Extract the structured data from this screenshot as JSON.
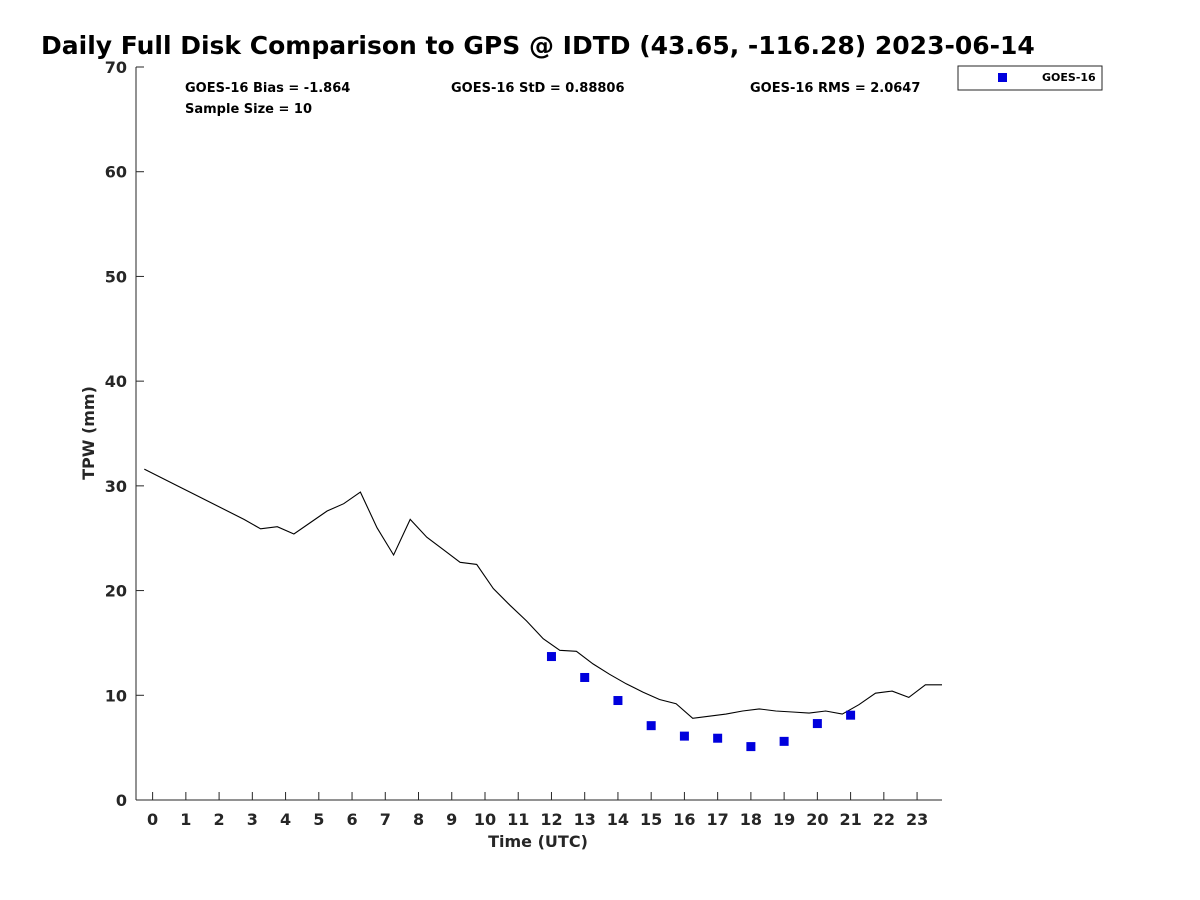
{
  "chart_data": {
    "type": "scatter",
    "title": "Daily Full Disk Comparison to GPS @ IDTD (43.65, -116.28) 2023-06-14",
    "xlabel": "Time (UTC)",
    "ylabel": "TPW (mm)",
    "xlim": [
      -0.5,
      23.75
    ],
    "ylim": [
      0,
      70
    ],
    "x_ticks": [
      "0",
      "1",
      "2",
      "3",
      "4",
      "5",
      "6",
      "7",
      "8",
      "9",
      "10",
      "11",
      "12",
      "13",
      "14",
      "15",
      "16",
      "17",
      "18",
      "19",
      "20",
      "21",
      "22",
      "23"
    ],
    "y_ticks": [
      "0",
      "10",
      "20",
      "30",
      "40",
      "50",
      "60",
      "70"
    ],
    "grid": false,
    "legend_position": "top-right",
    "stats": {
      "bias": "GOES-16 Bias = -1.864",
      "std": "GOES-16 StD = 0.88806",
      "rms": "GOES-16 RMS = 2.0647",
      "sample_size": "Sample Size = 10"
    },
    "gps_line": {
      "x": [
        -0.25,
        0.25,
        0.75,
        1.25,
        1.75,
        2.25,
        2.75,
        3.25,
        3.75,
        4.25,
        4.75,
        5.25,
        5.75,
        6.25,
        6.75,
        7.25,
        7.75,
        8.25,
        8.75,
        9.25,
        9.75,
        10.25,
        10.75,
        11.25,
        11.75,
        12.25,
        12.75,
        13.25,
        13.75,
        14.25,
        14.75,
        15.25,
        15.75,
        16.25,
        16.75,
        17.25,
        17.75,
        18.25,
        18.75,
        19.25,
        19.75,
        20.25,
        20.75,
        21.25,
        21.75,
        22.25,
        22.75,
        23.25,
        23.75
      ],
      "y": [
        31.6,
        30.8,
        30.0,
        29.2,
        28.4,
        27.6,
        26.8,
        25.9,
        26.1,
        25.4,
        26.5,
        27.6,
        28.3,
        29.4,
        26.0,
        23.4,
        26.8,
        25.1,
        23.9,
        22.7,
        22.5,
        20.2,
        18.6,
        17.1,
        15.4,
        14.3,
        14.2,
        13.0,
        12.0,
        11.1,
        10.3,
        9.6,
        9.2,
        7.8,
        8.0,
        8.2,
        8.5,
        8.7,
        8.5,
        8.4,
        8.3,
        8.5,
        8.2,
        9.1,
        10.2,
        10.4,
        9.8,
        11.0,
        11.0
      ]
    },
    "series": [
      {
        "name": "GOES-16",
        "color": "#0000dd",
        "x": [
          12,
          13,
          14,
          15,
          16,
          17,
          18,
          19,
          20,
          21
        ],
        "y": [
          13.7,
          11.7,
          9.5,
          7.1,
          6.1,
          5.9,
          5.1,
          5.6,
          7.3,
          8.1
        ]
      }
    ]
  }
}
